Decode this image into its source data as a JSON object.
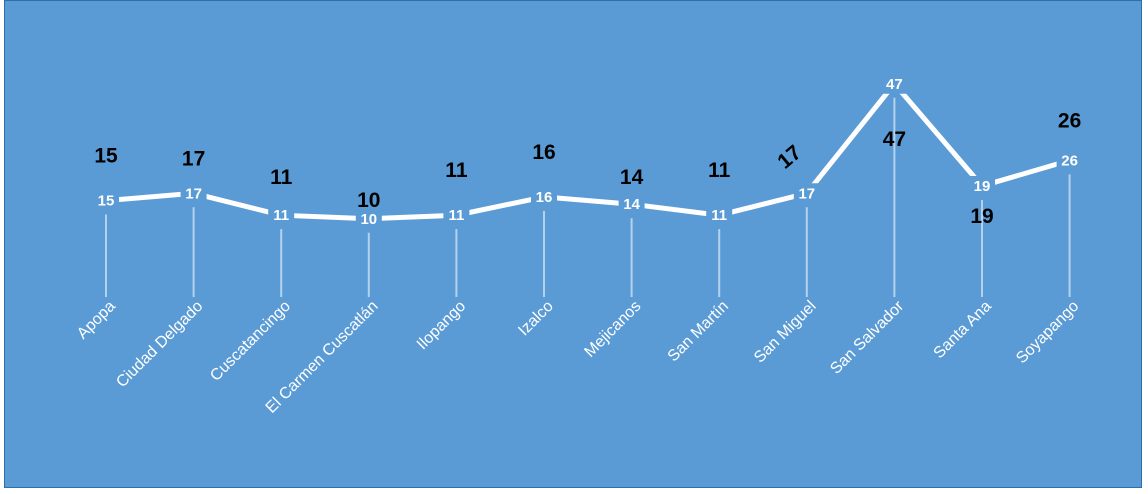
{
  "colors": {
    "background": "#5b9bd5",
    "line": "#ffffff",
    "drop_line": "#ffffff",
    "inner_label": "#ffffff",
    "outer_label": "#000000"
  },
  "chart_data": {
    "type": "line",
    "categories": [
      "Apopa",
      "Ciudad Delgado",
      "Cuscatancingo",
      "El Carmen Cuscatlán",
      "Ilopango",
      "Izalco",
      "Mejicanos",
      "San Martín",
      "San Miguel",
      "San Salvador",
      "Santa Ana",
      "Soyapango"
    ],
    "values": [
      15,
      17,
      11,
      10,
      11,
      16,
      14,
      11,
      17,
      47,
      19,
      26
    ],
    "title": "",
    "xlabel": "",
    "ylabel": "",
    "ylim": [
      0,
      47
    ],
    "grid": false,
    "legend": "none",
    "drop_lines": true,
    "data_labels": "duplicated (white inside line, black outside)"
  }
}
